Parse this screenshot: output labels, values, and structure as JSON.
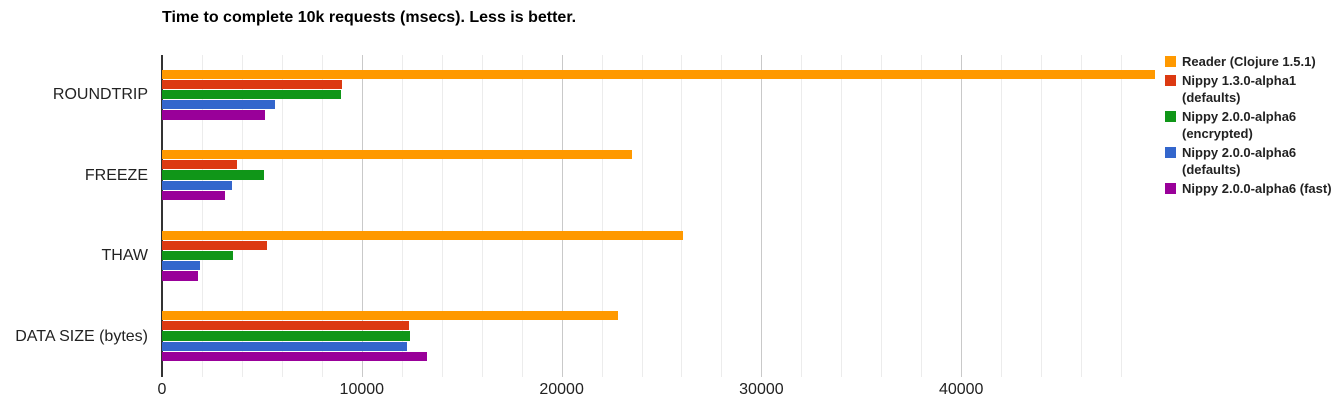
{
  "chart_data": {
    "type": "bar",
    "orientation": "horizontal",
    "title": "Time to complete 10k requests (msecs). Less is better.",
    "categories": [
      "ROUNDTRIP",
      "FREEZE",
      "THAW",
      "DATA SIZE (bytes)"
    ],
    "series": [
      {
        "name": "Reader (Clojure 1.5.1)",
        "color": "#FF9900",
        "values": [
          49700,
          23500,
          26100,
          22800
        ]
      },
      {
        "name": "Nippy 1.3.0-alpha1 (defaults)",
        "color": "#DC3912",
        "values": [
          9000,
          3750,
          5250,
          12350
        ]
      },
      {
        "name": "Nippy 2.0.0-alpha6 (encrypted)",
        "color": "#109618",
        "values": [
          8950,
          5100,
          3550,
          12400
        ]
      },
      {
        "name": "Nippy 2.0.0-alpha6 (defaults)",
        "color": "#3366CC",
        "values": [
          5650,
          3500,
          1900,
          12250
        ]
      },
      {
        "name": "Nippy 2.0.0-alpha6 (fast)",
        "color": "#990099",
        "values": [
          5150,
          3150,
          1800,
          13250
        ]
      }
    ],
    "xlim": [
      0,
      49700
    ],
    "x_ticks": [
      0,
      10000,
      20000,
      30000,
      40000
    ],
    "x_tick_labels": [
      "0",
      "10000",
      "20000",
      "30000",
      "40000"
    ],
    "gridlines": {
      "minor_step": 2000,
      "major_step": 10000,
      "minor_color": "#ececec",
      "major_color": "#c9c9c9",
      "baseline_color": "#333333"
    },
    "grid": true,
    "legend_position": "right",
    "text_color": "#222222",
    "title_color": "#000000"
  }
}
